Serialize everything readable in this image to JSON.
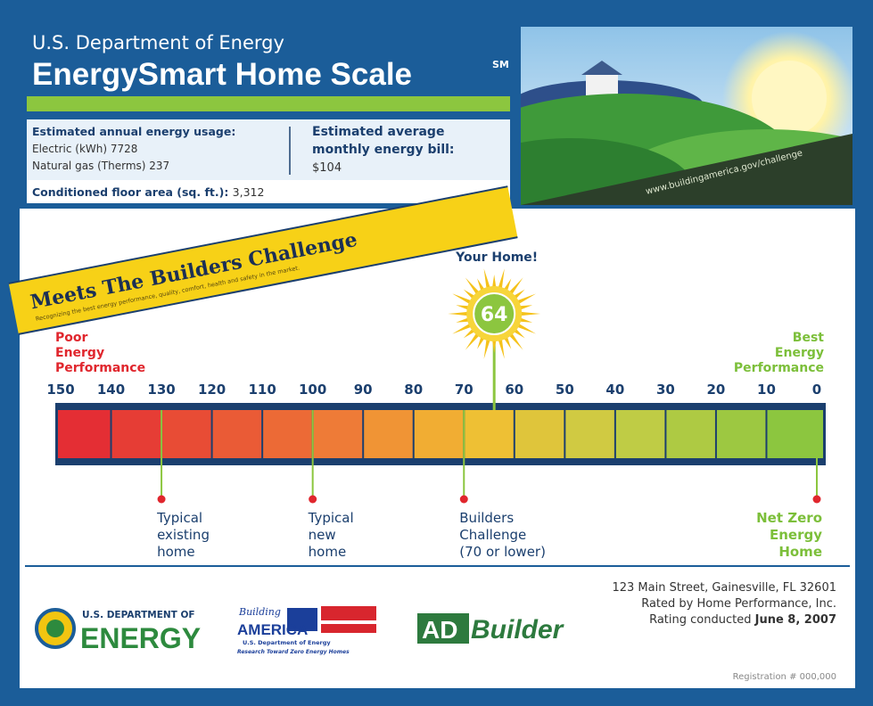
{
  "header": {
    "agency": "U.S. Department of Energy",
    "title": "EnergySmart Home Scale",
    "title_mark": "SM"
  },
  "usage": {
    "heading": "Estimated annual energy usage:",
    "electric": "Electric (kWh) 7728",
    "gas": "Natural gas (Therms) 237",
    "bill_heading": [
      "Estimated average",
      "monthly energy bill:"
    ],
    "bill": "$104",
    "area_label": "Conditioned floor area (sq. ft.):",
    "area": "3,312"
  },
  "photo": {
    "url": "www.buildingamerica.gov/challenge"
  },
  "banner": {
    "title": "Meets The Builders Challenge",
    "subtitle": "Recognizing the best energy performance, quality, comfort, health and safety in the market."
  },
  "scale": {
    "your_home_label": "Your Home!",
    "your_home": 64,
    "left_label": [
      "Poor",
      "Energy",
      "Performance"
    ],
    "right_label": [
      "Best",
      "Energy",
      "Performance"
    ],
    "ticks": [
      150,
      140,
      130,
      120,
      110,
      100,
      90,
      80,
      70,
      60,
      50,
      40,
      30,
      20,
      10,
      0
    ],
    "markers": [
      {
        "value": 130,
        "label": [
          "Typical",
          "existing",
          "home"
        ]
      },
      {
        "value": 100,
        "label": [
          "Typical",
          "new",
          "home"
        ]
      },
      {
        "value": 70,
        "label": [
          "Builders",
          "Challenge",
          "(70 or lower)"
        ]
      },
      {
        "value": 0,
        "label": [
          "Net Zero",
          "Energy",
          "Home"
        ]
      }
    ]
  },
  "footer": {
    "doe_logo": [
      "U.S. DEPARTMENT OF",
      "ENERGY"
    ],
    "ba_logo": [
      "Building",
      "AMERICA",
      "U.S. Department of Energy",
      "Research Toward Zero Energy Homes"
    ],
    "ad_logo": [
      "AD",
      "Builder"
    ],
    "address": "123 Main Street, Gainesville, FL 32601",
    "rated": "Rated by Home Performance, Inc.",
    "rating_prefix": "Rating conducted",
    "rating_date": "June 8, 2007",
    "registration": "Registration # 000,000"
  }
}
